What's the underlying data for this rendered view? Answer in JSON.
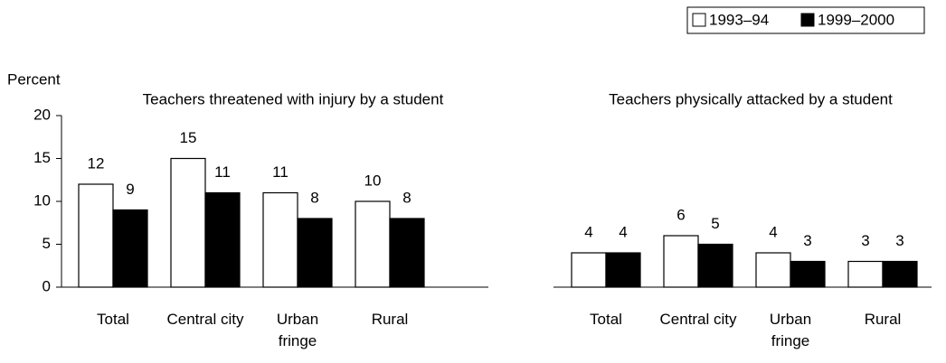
{
  "chart_data": {
    "type": "bar",
    "y_label": "Percent",
    "ylim": [
      0,
      20
    ],
    "yticks": [
      0,
      5,
      10,
      15,
      20
    ],
    "legend": "top-right",
    "series": [
      {
        "name": "1993–94",
        "color": "#ffffff"
      },
      {
        "name": "1999–2000",
        "color": "#000000"
      }
    ],
    "panels": [
      {
        "title": "Teachers threatened with injury by a student",
        "categories": [
          "Total",
          "Central city",
          "Urban\nfringe",
          "Rural"
        ],
        "values": [
          [
            12,
            15,
            11,
            10
          ],
          [
            9,
            11,
            8,
            8
          ]
        ]
      },
      {
        "title": "Teachers physically attacked by a student",
        "categories": [
          "Total",
          "Central city",
          "Urban\nfringe",
          "Rural"
        ],
        "values": [
          [
            4,
            6,
            4,
            3
          ],
          [
            4,
            5,
            3,
            3
          ]
        ]
      }
    ]
  }
}
